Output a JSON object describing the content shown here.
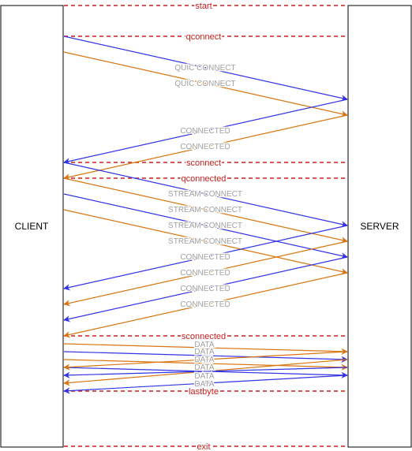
{
  "colors": {
    "blue": "#3333e6",
    "orange": "#d9750f",
    "marker": "#c81e1e",
    "label": "#a0a0a0",
    "box_border": "#000000"
  },
  "participants": {
    "client": "CLIENT",
    "server": "SERVER"
  },
  "markers": [
    {
      "label": "start"
    },
    {
      "label": "qconnect"
    },
    {
      "label": "sconnect"
    },
    {
      "label": "qconnected"
    },
    {
      "label": "sconnected"
    },
    {
      "label": "lastbyte"
    },
    {
      "label": "exit"
    }
  ],
  "messages": [
    {
      "label": "QUIC CONNECT",
      "from": "client",
      "color": "blue"
    },
    {
      "label": "QUIC CONNECT",
      "from": "client",
      "color": "orange"
    },
    {
      "label": "CONNECTED",
      "from": "server",
      "color": "blue"
    },
    {
      "label": "CONNECTED",
      "from": "server",
      "color": "orange"
    },
    {
      "label": "STREAM CONNECT",
      "from": "client",
      "color": "blue"
    },
    {
      "label": "STREAM CONNECT",
      "from": "client",
      "color": "orange"
    },
    {
      "label": "STREAM CONNECT",
      "from": "client",
      "color": "blue"
    },
    {
      "label": "STREAM CONNECT",
      "from": "client",
      "color": "orange"
    },
    {
      "label": "CONNECTED",
      "from": "server",
      "color": "blue"
    },
    {
      "label": "CONNECTED",
      "from": "server",
      "color": "orange"
    },
    {
      "label": "CONNECTED",
      "from": "server",
      "color": "blue"
    },
    {
      "label": "CONNECTED",
      "from": "server",
      "color": "orange"
    },
    {
      "label": "DATA",
      "from": "client",
      "color": "orange"
    },
    {
      "label": "DATA",
      "from": "client",
      "color": "blue"
    },
    {
      "label": "DATA",
      "from": "client",
      "color": "orange"
    },
    {
      "label": "DATA",
      "from": "client",
      "color": "blue"
    },
    {
      "label": "DATA",
      "from": "server",
      "color": "orange"
    },
    {
      "label": "DATA",
      "from": "server",
      "color": "orange"
    },
    {
      "label": "DATA",
      "from": "server",
      "color": "blue"
    },
    {
      "label": "DATA",
      "from": "server",
      "color": "blue"
    }
  ]
}
